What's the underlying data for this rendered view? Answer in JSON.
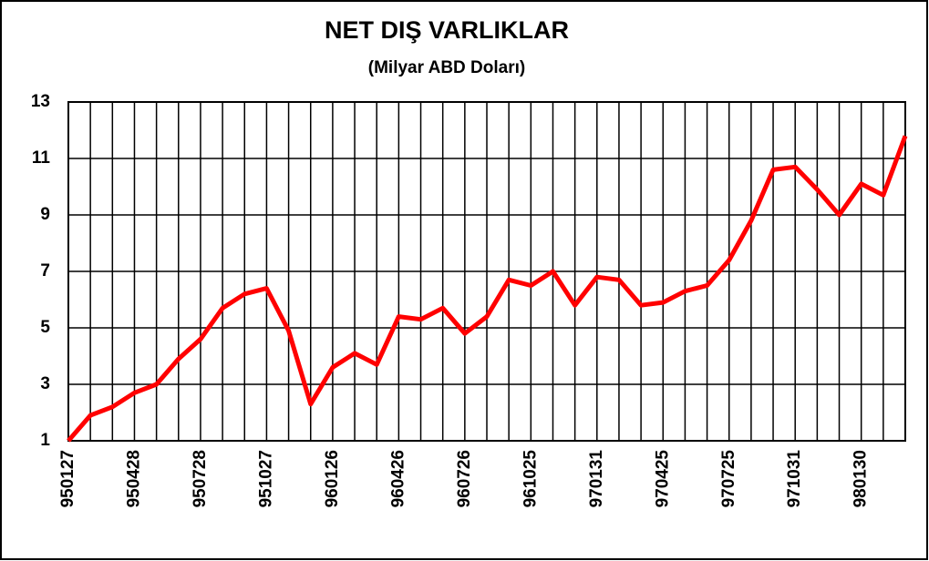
{
  "chart_data": {
    "type": "line",
    "title": "NET DIŞ VARLIKLAR",
    "subtitle": "(Milyar ABD Doları)",
    "categories": [
      "950127",
      null,
      null,
      "950428",
      null,
      null,
      "950728",
      null,
      null,
      "951027",
      null,
      null,
      "960126",
      null,
      null,
      "960426",
      null,
      null,
      "960726",
      null,
      null,
      "961025",
      null,
      null,
      "970131",
      null,
      null,
      "970425",
      null,
      null,
      "970725",
      null,
      null,
      "971031",
      null,
      null,
      "980130",
      null,
      null
    ],
    "series": [
      {
        "name": "NET DIŞ VARLIKLAR",
        "color": "#ff0000",
        "values": [
          1.0,
          1.9,
          2.2,
          2.7,
          3.0,
          3.9,
          4.6,
          5.7,
          6.2,
          6.4,
          4.9,
          2.3,
          3.6,
          4.1,
          3.7,
          5.4,
          5.3,
          5.7,
          4.8,
          5.4,
          6.7,
          6.5,
          7.0,
          5.8,
          6.8,
          6.7,
          5.8,
          5.9,
          6.3,
          6.5,
          7.4,
          8.8,
          10.6,
          10.7,
          9.9,
          9.0,
          10.1,
          9.7,
          11.8
        ]
      }
    ],
    "ylim": [
      1,
      13
    ],
    "yticks": [
      1,
      3,
      5,
      7,
      9,
      11,
      13
    ],
    "grid": true
  }
}
